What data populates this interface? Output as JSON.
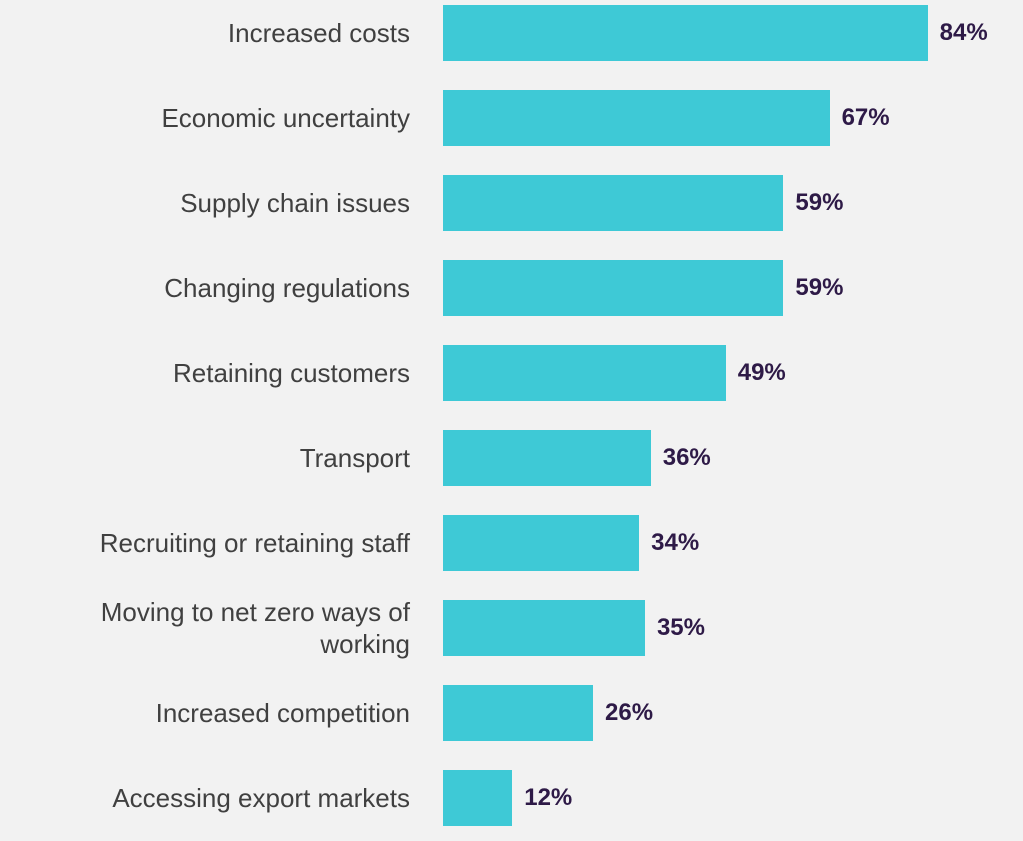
{
  "chart_data": {
    "type": "bar",
    "orientation": "horizontal",
    "categories": [
      "Increased costs",
      "Economic uncertainty",
      "Supply chain issues",
      "Changing regulations",
      "Retaining customers",
      "Transport",
      "Recruiting or retaining staff",
      "Moving to net zero ways of working",
      "Increased competition",
      "Accessing export markets"
    ],
    "values": [
      84,
      67,
      59,
      59,
      49,
      36,
      34,
      35,
      26,
      12
    ],
    "value_labels": [
      "84%",
      "67%",
      "59%",
      "59%",
      "49%",
      "36%",
      "34%",
      "35%",
      "26%",
      "12%"
    ],
    "color": "#3ec9d6",
    "xlim": [
      0,
      100
    ]
  }
}
